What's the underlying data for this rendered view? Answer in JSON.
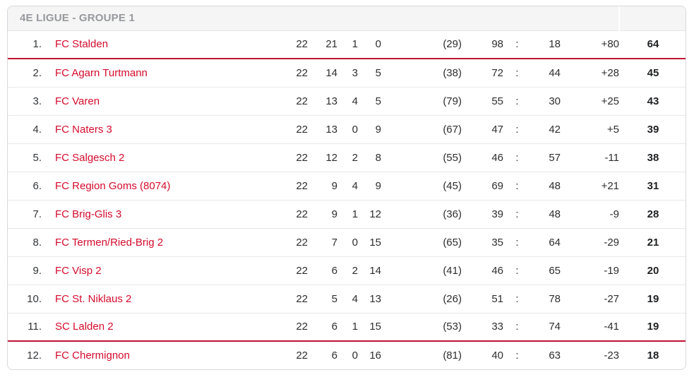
{
  "header": {
    "title": "4E LIGUE - GROUPE 1",
    "points_header": ""
  },
  "colors": {
    "accent_red": "#d40b2c",
    "separator_red": "#c01335",
    "header_bg": "#f5f5f6",
    "header_text": "#97999c",
    "border": "#d9d9de",
    "row_divider": "#e8e8ea",
    "text": "#2e2e30"
  },
  "table": {
    "colon_symbol": ":",
    "columns": [
      "rank",
      "team",
      "played",
      "wins",
      "draws",
      "losses",
      "bonus",
      "goals_for",
      "colon",
      "goals_against",
      "diff",
      "points"
    ],
    "rows": [
      {
        "rank": "1.",
        "team": "FC Stalden",
        "played": "22",
        "wins": "21",
        "draws": "1",
        "losses": "0",
        "bonus": "(29)",
        "goals_for": "98",
        "goals_against": "18",
        "diff": "+80",
        "points": "64",
        "divider": "red"
      },
      {
        "rank": "2.",
        "team": "FC Agarn Turtmann",
        "played": "22",
        "wins": "14",
        "draws": "3",
        "losses": "5",
        "bonus": "(38)",
        "goals_for": "72",
        "goals_against": "44",
        "diff": "+28",
        "points": "45",
        "divider": "gray"
      },
      {
        "rank": "3.",
        "team": "FC Varen",
        "played": "22",
        "wins": "13",
        "draws": "4",
        "losses": "5",
        "bonus": "(79)",
        "goals_for": "55",
        "goals_against": "30",
        "diff": "+25",
        "points": "43",
        "divider": "gray"
      },
      {
        "rank": "4.",
        "team": "FC Naters 3",
        "played": "22",
        "wins": "13",
        "draws": "0",
        "losses": "9",
        "bonus": "(67)",
        "goals_for": "47",
        "goals_against": "42",
        "diff": "+5",
        "points": "39",
        "divider": "gray"
      },
      {
        "rank": "5.",
        "team": "FC Salgesch 2",
        "played": "22",
        "wins": "12",
        "draws": "2",
        "losses": "8",
        "bonus": "(55)",
        "goals_for": "46",
        "goals_against": "57",
        "diff": "-11",
        "points": "38",
        "divider": "gray"
      },
      {
        "rank": "6.",
        "team": "FC Region Goms (8074)",
        "played": "22",
        "wins": "9",
        "draws": "4",
        "losses": "9",
        "bonus": "(45)",
        "goals_for": "69",
        "goals_against": "48",
        "diff": "+21",
        "points": "31",
        "divider": "gray"
      },
      {
        "rank": "7.",
        "team": "FC Brig-Glis 3",
        "played": "22",
        "wins": "9",
        "draws": "1",
        "losses": "12",
        "bonus": "(36)",
        "goals_for": "39",
        "goals_against": "48",
        "diff": "-9",
        "points": "28",
        "divider": "gray"
      },
      {
        "rank": "8.",
        "team": "FC Termen/Ried-Brig 2",
        "played": "22",
        "wins": "7",
        "draws": "0",
        "losses": "15",
        "bonus": "(65)",
        "goals_for": "35",
        "goals_against": "64",
        "diff": "-29",
        "points": "21",
        "divider": "gray"
      },
      {
        "rank": "9.",
        "team": "FC Visp 2",
        "played": "22",
        "wins": "6",
        "draws": "2",
        "losses": "14",
        "bonus": "(41)",
        "goals_for": "46",
        "goals_against": "65",
        "diff": "-19",
        "points": "20",
        "divider": "gray"
      },
      {
        "rank": "10.",
        "team": "FC St. Niklaus 2",
        "played": "22",
        "wins": "5",
        "draws": "4",
        "losses": "13",
        "bonus": "(26)",
        "goals_for": "51",
        "goals_against": "78",
        "diff": "-27",
        "points": "19",
        "divider": "gray"
      },
      {
        "rank": "11.",
        "team": "SC Lalden 2",
        "played": "22",
        "wins": "6",
        "draws": "1",
        "losses": "15",
        "bonus": "(53)",
        "goals_for": "33",
        "goals_against": "74",
        "diff": "-41",
        "points": "19",
        "divider": "red"
      },
      {
        "rank": "12.",
        "team": "FC Chermignon",
        "played": "22",
        "wins": "6",
        "draws": "0",
        "losses": "16",
        "bonus": "(81)",
        "goals_for": "40",
        "goals_against": "63",
        "diff": "-23",
        "points": "18",
        "divider": "none"
      }
    ]
  }
}
